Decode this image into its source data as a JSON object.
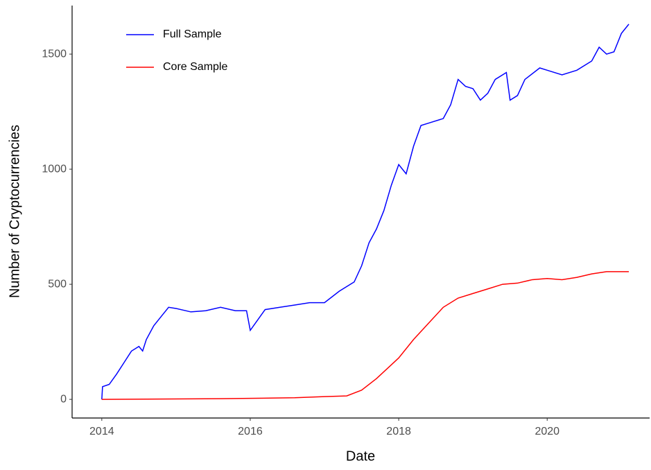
{
  "chart_data": {
    "type": "line",
    "xlabel": "Date",
    "ylabel": "Number of Cryptocurrencies",
    "xlim": [
      2013.6,
      2021.38
    ],
    "xticks": [
      2014,
      2016,
      2018,
      2020
    ],
    "ylim": [
      -81,
      1711
    ],
    "yticks": [
      0,
      500,
      1000,
      1500
    ],
    "grid": false,
    "legend": "top-left",
    "series": [
      {
        "name": "Full Sample",
        "color": "#0000ff",
        "x": [
          2014.0,
          2014.01,
          2014.1,
          2014.2,
          2014.3,
          2014.4,
          2014.5,
          2014.55,
          2014.6,
          2014.7,
          2014.8,
          2014.9,
          2015.0,
          2015.2,
          2015.4,
          2015.6,
          2015.8,
          2015.95,
          2016.0,
          2016.1,
          2016.2,
          2016.4,
          2016.6,
          2016.8,
          2017.0,
          2017.2,
          2017.4,
          2017.5,
          2017.6,
          2017.7,
          2017.8,
          2017.9,
          2018.0,
          2018.1,
          2018.2,
          2018.3,
          2018.4,
          2018.6,
          2018.7,
          2018.8,
          2018.9,
          2019.0,
          2019.1,
          2019.2,
          2019.3,
          2019.45,
          2019.5,
          2019.6,
          2019.7,
          2019.9,
          2020.0,
          2020.2,
          2020.4,
          2020.6,
          2020.7,
          2020.8,
          2020.9,
          2021.0,
          2021.1
        ],
        "values": [
          0,
          55,
          65,
          110,
          160,
          210,
          230,
          210,
          260,
          320,
          360,
          400,
          395,
          380,
          385,
          400,
          385,
          385,
          300,
          345,
          390,
          400,
          410,
          420,
          420,
          470,
          510,
          580,
          680,
          740,
          820,
          930,
          1020,
          980,
          1100,
          1190,
          1200,
          1220,
          1280,
          1390,
          1360,
          1350,
          1300,
          1330,
          1390,
          1420,
          1300,
          1320,
          1390,
          1440,
          1430,
          1410,
          1430,
          1470,
          1530,
          1500,
          1510,
          1590,
          1630
        ]
      },
      {
        "name": "Core Sample",
        "color": "#ff0000",
        "x": [
          2014.0,
          2015.6,
          2016.6,
          2017.0,
          2017.3,
          2017.5,
          2017.7,
          2017.9,
          2018.0,
          2018.2,
          2018.4,
          2018.6,
          2018.8,
          2019.0,
          2019.2,
          2019.4,
          2019.6,
          2019.8,
          2020.0,
          2020.2,
          2020.4,
          2020.6,
          2020.8,
          2021.0,
          2021.1
        ],
        "values": [
          0,
          3,
          7,
          12,
          15,
          40,
          90,
          150,
          180,
          260,
          330,
          400,
          440,
          460,
          480,
          500,
          505,
          520,
          525,
          520,
          530,
          545,
          555,
          555,
          555
        ]
      }
    ]
  }
}
